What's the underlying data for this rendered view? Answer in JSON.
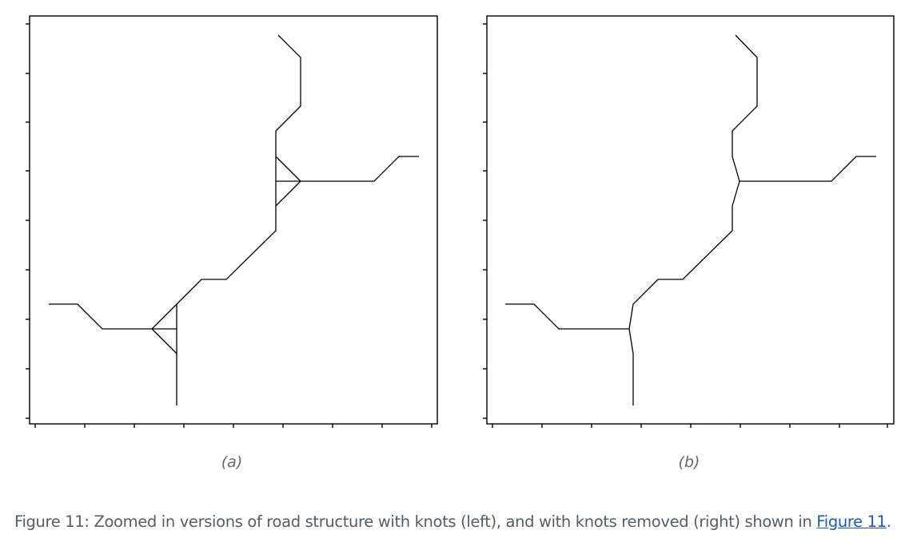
{
  "figure": {
    "panels": [
      {
        "id": "a",
        "label": "(a)",
        "description_hidden": false
      },
      {
        "id": "b",
        "label": "(b)",
        "description_hidden": false
      }
    ],
    "caption": {
      "prefix": "Figure 11: Zoomed in versions of road structure with knots (left), and with knots removed (right) shown in ",
      "link_text": "Figure 11",
      "suffix": "."
    }
  }
}
